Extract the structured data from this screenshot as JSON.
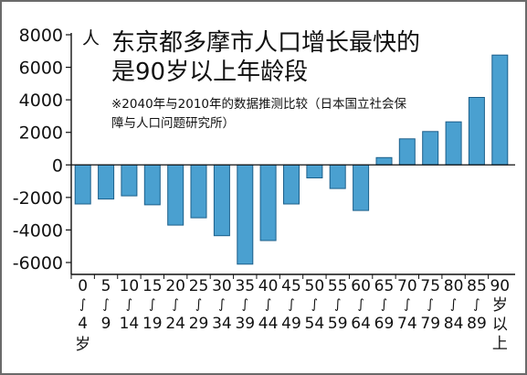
{
  "chart_data": {
    "type": "bar",
    "title_lines": [
      "东京都多摩市人口增长最快的",
      "是90岁以上年龄段"
    ],
    "note_lines": [
      "※2040年与2010年的数据推测比较（日本国立社会保",
      "障与人口问题研究所）"
    ],
    "unit_label": "人",
    "ylim": [
      -6500,
      8000
    ],
    "y_ticks": [
      -6000,
      -4000,
      -2000,
      0,
      2000,
      4000,
      6000,
      8000
    ],
    "y_tick_labels": [
      "-6000",
      "-4000",
      "-2000",
      "0",
      "2000",
      "4000",
      "6000",
      "8000"
    ],
    "grid": false,
    "bar_color": "#4aa0d0",
    "bar_edge_color": "#1c5f8a",
    "categories": [
      {
        "top": "0",
        "bottom": "4",
        "suffix": "岁"
      },
      {
        "top": "5",
        "bottom": "9"
      },
      {
        "top": "10",
        "bottom": "14"
      },
      {
        "top": "15",
        "bottom": "19"
      },
      {
        "top": "20",
        "bottom": "24"
      },
      {
        "top": "25",
        "bottom": "29"
      },
      {
        "top": "30",
        "bottom": "34"
      },
      {
        "top": "35",
        "bottom": "39"
      },
      {
        "top": "40",
        "bottom": "44"
      },
      {
        "top": "45",
        "bottom": "49"
      },
      {
        "top": "50",
        "bottom": "54"
      },
      {
        "top": "55",
        "bottom": "59"
      },
      {
        "top": "60",
        "bottom": "64"
      },
      {
        "top": "65",
        "bottom": "69"
      },
      {
        "top": "70",
        "bottom": "74"
      },
      {
        "top": "75",
        "bottom": "79"
      },
      {
        "top": "80",
        "bottom": "84"
      },
      {
        "top": "85",
        "bottom": "89"
      },
      {
        "top": "90",
        "suffix_stack": [
          "岁",
          "以",
          "上"
        ]
      }
    ],
    "values": [
      -2400,
      -2100,
      -1900,
      -2450,
      -3700,
      -3250,
      -4350,
      -6100,
      -4650,
      -2400,
      -800,
      -1450,
      -2800,
      450,
      1600,
      2050,
      2650,
      4150,
      6750
    ]
  }
}
